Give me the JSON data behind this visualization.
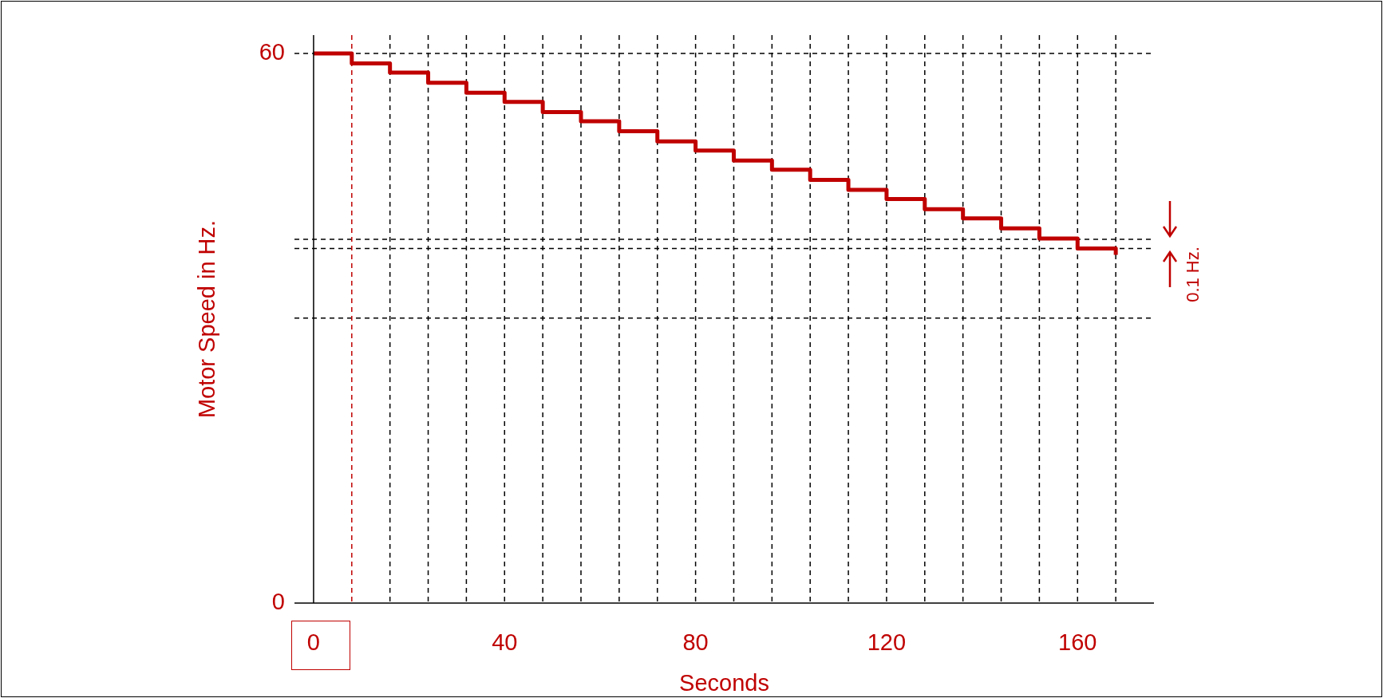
{
  "chart_data": {
    "type": "step",
    "xlabel": "Seconds",
    "ylabel": "Motor Speed in Hz.",
    "color": "#c00000",
    "x": [
      0,
      8,
      16,
      24,
      32,
      40,
      48,
      56,
      64,
      72,
      80,
      88,
      96,
      104,
      112,
      120,
      128,
      136,
      144,
      152,
      160,
      168
    ],
    "values": [
      60,
      58.9,
      57.9,
      56.8,
      55.7,
      54.7,
      53.6,
      52.6,
      51.5,
      50.4,
      49.4,
      48.3,
      47.3,
      46.2,
      45.1,
      44.1,
      43.0,
      42.0,
      40.9,
      39.8,
      38.7,
      38.0
    ],
    "xlim": [
      -4,
      176
    ],
    "ylim": [
      0,
      62
    ],
    "xticks": [
      0,
      40,
      80,
      120,
      160
    ],
    "yticks": [
      0,
      60
    ],
    "grid": false,
    "ref_lines": [
      {
        "axis": "y",
        "value": 60,
        "color": "#000000",
        "line_style": "dashed"
      },
      {
        "axis": "y",
        "value": 39.7,
        "color": "#000000",
        "line_style": "dashed"
      },
      {
        "axis": "y",
        "value": 38.7,
        "color": "#000000",
        "line_style": "dashed"
      },
      {
        "axis": "y",
        "value": 31.1,
        "color": "#000000",
        "line_style": "dashed"
      },
      {
        "axis": "x",
        "value": 8,
        "color": "#c00000",
        "line_style": "dashed"
      },
      {
        "axis": "x",
        "value": 16,
        "color": "#000000",
        "line_style": "dashed"
      },
      {
        "axis": "x",
        "value": 24,
        "color": "#000000",
        "line_style": "dashed"
      },
      {
        "axis": "x",
        "value": 32,
        "color": "#000000",
        "line_style": "dashed"
      },
      {
        "axis": "x",
        "value": 40,
        "color": "#000000",
        "line_style": "dashed"
      },
      {
        "axis": "x",
        "value": 48,
        "color": "#000000",
        "line_style": "dashed"
      },
      {
        "axis": "x",
        "value": 56,
        "color": "#000000",
        "line_style": "dashed"
      },
      {
        "axis": "x",
        "value": 64,
        "color": "#000000",
        "line_style": "dashed"
      },
      {
        "axis": "x",
        "value": 72,
        "color": "#000000",
        "line_style": "dashed"
      },
      {
        "axis": "x",
        "value": 80,
        "color": "#000000",
        "line_style": "dashed"
      },
      {
        "axis": "x",
        "value": 88,
        "color": "#000000",
        "line_style": "dashed"
      },
      {
        "axis": "x",
        "value": 96,
        "color": "#000000",
        "line_style": "dashed"
      },
      {
        "axis": "x",
        "value": 104,
        "color": "#000000",
        "line_style": "dashed"
      },
      {
        "axis": "x",
        "value": 112,
        "color": "#000000",
        "line_style": "dashed"
      },
      {
        "axis": "x",
        "value": 120,
        "color": "#000000",
        "line_style": "dashed"
      },
      {
        "axis": "x",
        "value": 128,
        "color": "#000000",
        "line_style": "dashed"
      },
      {
        "axis": "x",
        "value": 136,
        "color": "#000000",
        "line_style": "dashed"
      },
      {
        "axis": "x",
        "value": 144,
        "color": "#000000",
        "line_style": "dashed"
      },
      {
        "axis": "x",
        "value": 152,
        "color": "#000000",
        "line_style": "dashed"
      },
      {
        "axis": "x",
        "value": 160,
        "color": "#000000",
        "line_style": "dashed"
      },
      {
        "axis": "x",
        "value": 168,
        "color": "#000000",
        "line_style": "dashed"
      }
    ],
    "annotations": [
      "0.1 Hz."
    ]
  }
}
